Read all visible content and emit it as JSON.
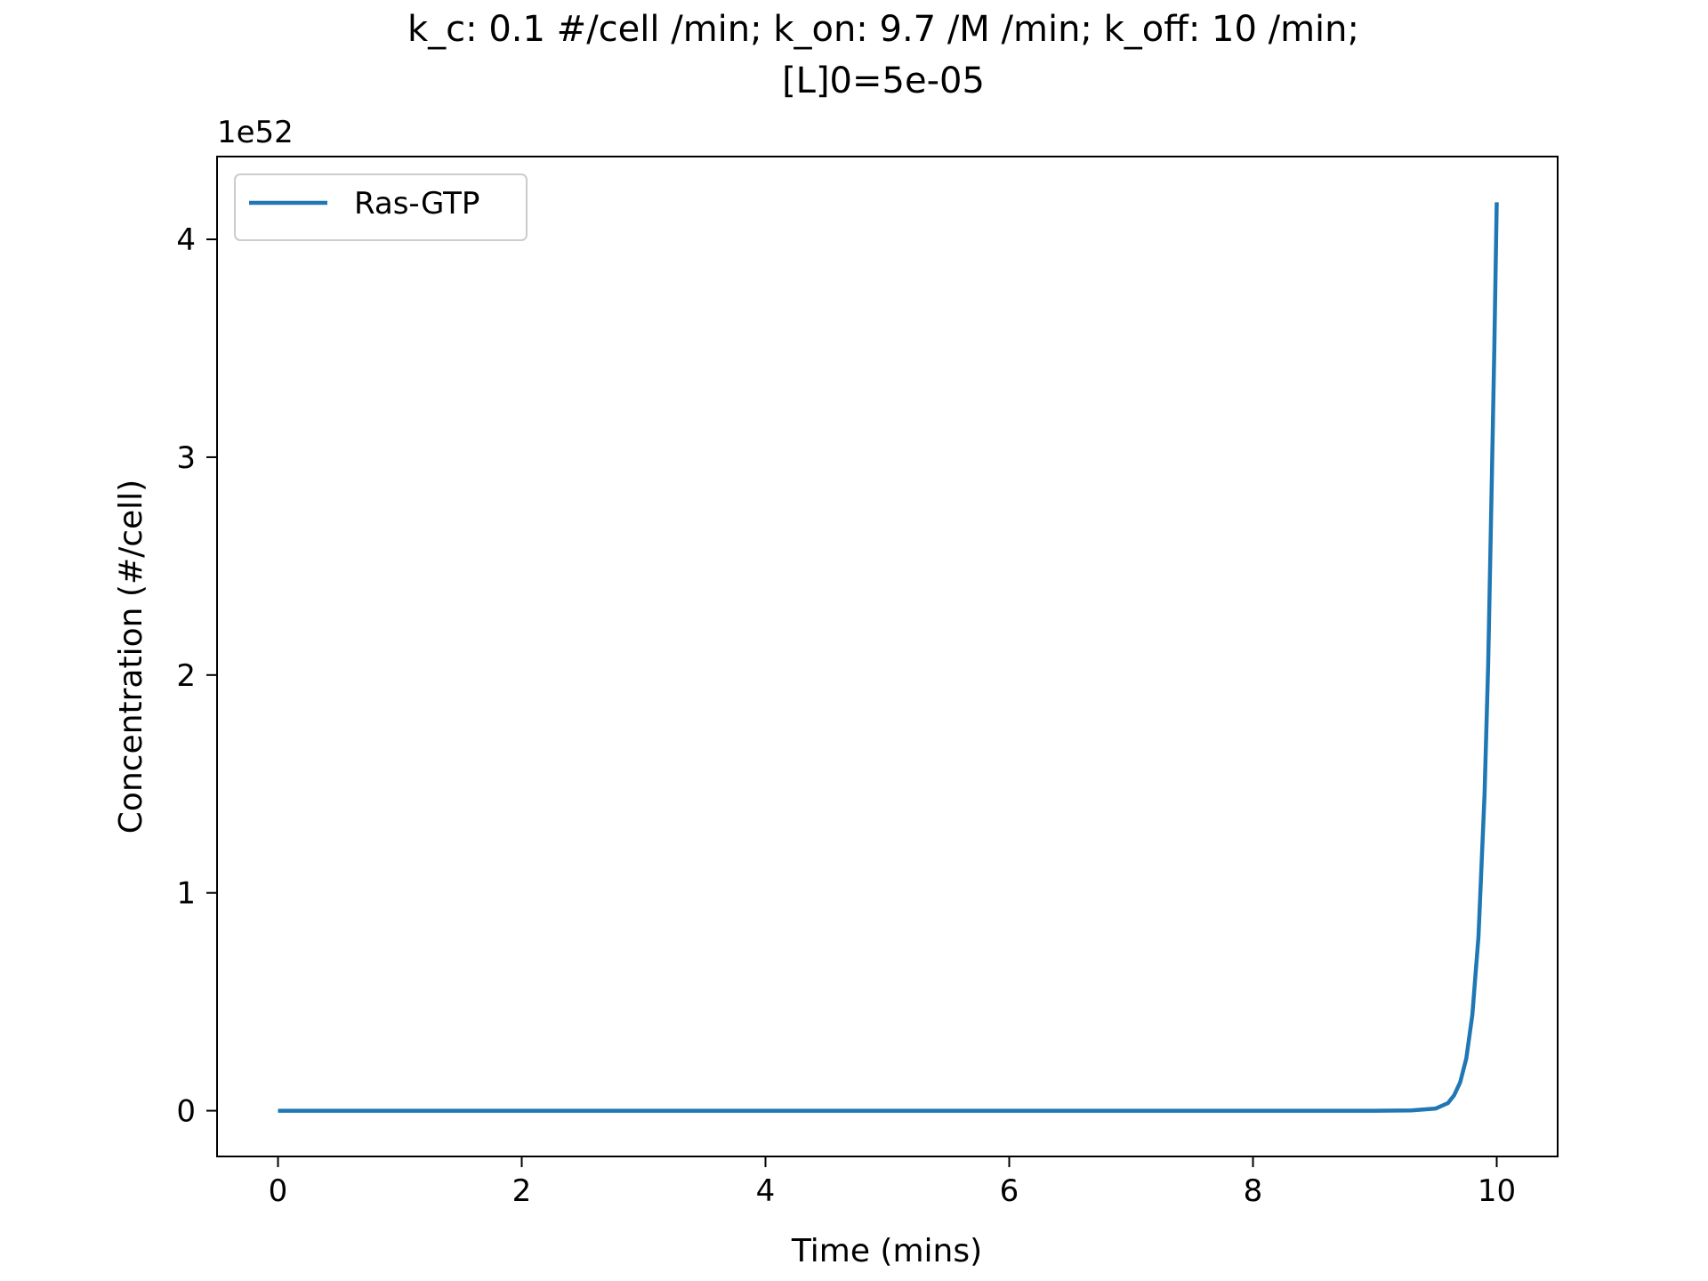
{
  "chart_data": {
    "type": "line",
    "title_lines": [
      "k_c: 0.1 #/cell /min; k_on: 9.7 /M /min; k_off: 10 /min;",
      "[L]0=5e-05"
    ],
    "xlabel": "Time (mins)",
    "ylabel": "Concentration (#/cell)",
    "y_offset_label": "1e52",
    "xlim": [
      -0.5,
      10.5
    ],
    "ylim": [
      -0.21,
      4.38
    ],
    "x_ticks": [
      0,
      2,
      4,
      6,
      8,
      10
    ],
    "x_tick_labels": [
      "0",
      "2",
      "4",
      "6",
      "8",
      "10"
    ],
    "y_ticks": [
      0,
      1,
      2,
      3,
      4
    ],
    "y_tick_labels": [
      "0",
      "1",
      "2",
      "3",
      "4"
    ],
    "grid": false,
    "legend_position": "upper-left",
    "series": [
      {
        "name": "Ras-GTP",
        "color": "#1f77b4",
        "x": [
          0,
          1,
          2,
          3,
          4,
          5,
          6,
          7,
          8,
          9,
          9.3,
          9.5,
          9.6,
          9.65,
          9.7,
          9.75,
          9.8,
          9.85,
          9.9,
          9.93,
          9.96,
          9.98,
          10
        ],
        "y": [
          0,
          0,
          0,
          0,
          0,
          0,
          0,
          0,
          0,
          0.0001,
          0.001,
          0.01,
          0.035,
          0.07,
          0.13,
          0.24,
          0.44,
          0.8,
          1.45,
          2.05,
          2.9,
          3.5,
          4.17
        ]
      }
    ]
  }
}
